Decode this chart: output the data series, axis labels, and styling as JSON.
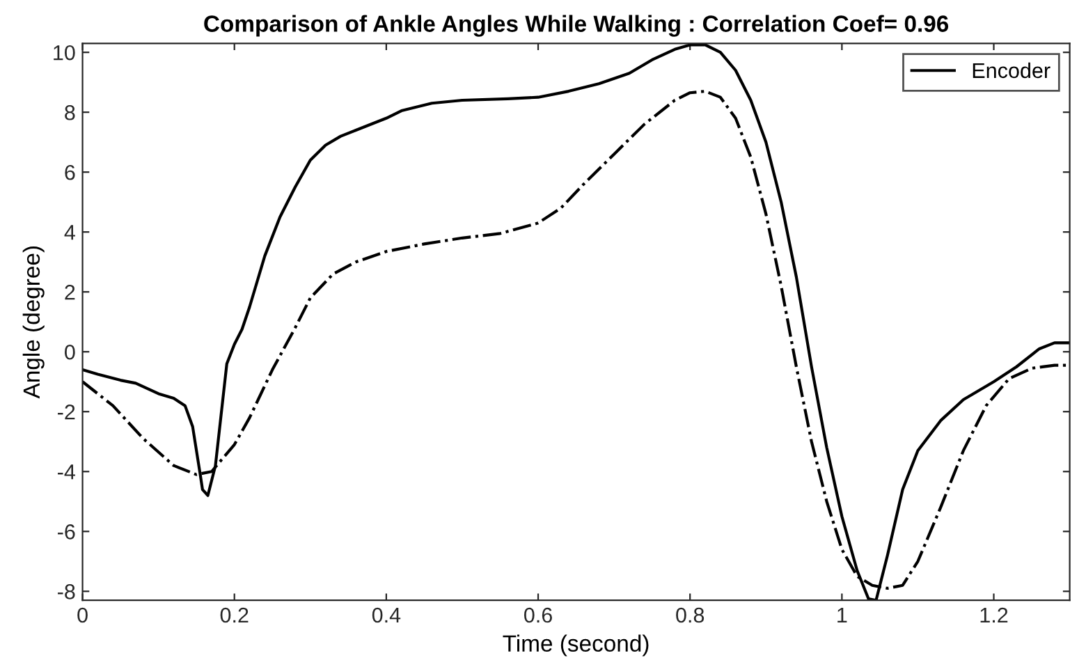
{
  "chart_data": {
    "type": "line",
    "title": "Comparison of Ankle Angles While Walking : Correlation Coef= 0.96",
    "xlabel": "Time (second)",
    "ylabel": "Angle (degree)",
    "xlim": [
      0,
      1.3
    ],
    "ylim": [
      -8.3,
      10.3
    ],
    "xticks": [
      0,
      0.2,
      0.4,
      0.6,
      0.8,
      1,
      1.2
    ],
    "yticks": [
      -8,
      -6,
      -4,
      -2,
      0,
      2,
      4,
      6,
      8,
      10
    ],
    "grid": false,
    "legend": "top right",
    "series": [
      {
        "name": "Encoder",
        "color": "#000000",
        "line_style": "solid",
        "x": [
          0,
          0.02,
          0.05,
          0.07,
          0.1,
          0.12,
          0.135,
          0.145,
          0.155,
          0.158,
          0.165,
          0.175,
          0.19,
          0.2,
          0.21,
          0.22,
          0.24,
          0.26,
          0.28,
          0.3,
          0.32,
          0.34,
          0.36,
          0.4,
          0.42,
          0.46,
          0.5,
          0.56,
          0.6,
          0.64,
          0.68,
          0.72,
          0.75,
          0.78,
          0.8,
          0.82,
          0.84,
          0.86,
          0.88,
          0.9,
          0.92,
          0.94,
          0.96,
          0.98,
          1.0,
          1.02,
          1.035,
          1.045,
          1.06,
          1.08,
          1.1,
          1.13,
          1.16,
          1.2,
          1.23,
          1.26,
          1.28,
          1.3
        ],
        "values": [
          -0.6,
          -0.75,
          -0.95,
          -1.05,
          -1.4,
          -1.55,
          -1.8,
          -2.5,
          -4.1,
          -4.6,
          -4.8,
          -3.8,
          -0.4,
          0.25,
          0.75,
          1.5,
          3.2,
          4.5,
          5.5,
          6.4,
          6.9,
          7.2,
          7.4,
          7.8,
          8.05,
          8.3,
          8.4,
          8.45,
          8.5,
          8.7,
          8.95,
          9.3,
          9.75,
          10.1,
          10.25,
          10.25,
          10.0,
          9.4,
          8.4,
          7.0,
          5.0,
          2.5,
          -0.5,
          -3.2,
          -5.5,
          -7.3,
          -8.25,
          -8.3,
          -6.8,
          -4.6,
          -3.3,
          -2.3,
          -1.6,
          -1.0,
          -0.5,
          0.1,
          0.3,
          0.3
        ]
      },
      {
        "color": "#000000",
        "line_style": "dashdot",
        "x": [
          0,
          0.04,
          0.08,
          0.12,
          0.15,
          0.17,
          0.2,
          0.22,
          0.25,
          0.28,
          0.3,
          0.33,
          0.36,
          0.4,
          0.45,
          0.5,
          0.55,
          0.6,
          0.63,
          0.66,
          0.7,
          0.74,
          0.78,
          0.8,
          0.82,
          0.84,
          0.86,
          0.88,
          0.9,
          0.92,
          0.94,
          0.96,
          0.98,
          1.0,
          1.02,
          1.04,
          1.06,
          1.08,
          1.1,
          1.13,
          1.16,
          1.19,
          1.22,
          1.25,
          1.28,
          1.3
        ],
        "values": [
          -1.0,
          -1.8,
          -2.9,
          -3.8,
          -4.1,
          -4.0,
          -3.1,
          -2.2,
          -0.6,
          0.8,
          1.8,
          2.6,
          3.0,
          3.35,
          3.6,
          3.8,
          3.95,
          4.3,
          4.8,
          5.6,
          6.6,
          7.6,
          8.4,
          8.65,
          8.7,
          8.5,
          7.8,
          6.5,
          4.6,
          2.2,
          -0.5,
          -3.0,
          -5.0,
          -6.6,
          -7.5,
          -7.8,
          -7.9,
          -7.8,
          -7.0,
          -5.2,
          -3.3,
          -1.8,
          -0.9,
          -0.55,
          -0.45,
          -0.45
        ]
      }
    ]
  }
}
